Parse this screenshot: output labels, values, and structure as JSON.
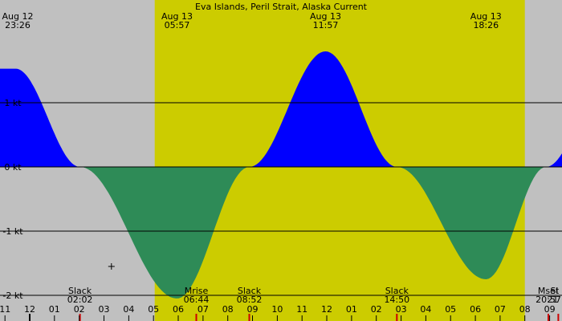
{
  "chart_data": {
    "type": "area",
    "title": "Eva Islands, Peril Strait, Alaska Current",
    "header_events": [
      {
        "date": "Aug 12",
        "time": "23:26"
      },
      {
        "date": "Aug 13",
        "time": "05:57"
      },
      {
        "date": "Aug 13",
        "time": "11:57"
      },
      {
        "date": "Aug 13",
        "time": "18:26"
      }
    ],
    "y_unit": "kt",
    "ylim": [
      -2.4,
      2.6
    ],
    "y_gridlines": [
      {
        "value": 1,
        "label": "1 kt"
      },
      {
        "value": 0,
        "label": "0 kt"
      },
      {
        "value": -1,
        "label": "-1 kt"
      },
      {
        "value": -2,
        "label": "-2 kt"
      }
    ],
    "x_unit": "hours",
    "x_range_hours": [
      22.8,
      45.5
    ],
    "hour_ticks": [
      "11",
      "12",
      "01",
      "02",
      "03",
      "04",
      "05",
      "06",
      "07",
      "08",
      "09",
      "10",
      "11",
      "12",
      "01",
      "02",
      "03",
      "04",
      "05",
      "06",
      "07",
      "08",
      "09"
    ],
    "first_tick_hour": 23,
    "daylight": {
      "sunrise_hour": 29.05,
      "sunset_hour": 44.0
    },
    "current_extremes": [
      {
        "hour": 23.43,
        "value": 1.53
      },
      {
        "hour": 29.95,
        "value": -2.05
      },
      {
        "hour": 35.95,
        "value": 1.8
      },
      {
        "hour": 42.43,
        "value": -1.75
      },
      {
        "hour": 47.5,
        "value": 1.5
      }
    ],
    "slack_hours": [
      26.03,
      32.87,
      38.83,
      44.85
    ],
    "bottom_events": [
      {
        "label": "Slack",
        "time": "02:02",
        "hour": 26.03
      },
      {
        "label": "Mrise",
        "time": "06:44",
        "hour": 30.73
      },
      {
        "label": "Slack",
        "time": "08:52",
        "hour": 32.87
      },
      {
        "label": "Slack",
        "time": "14:50",
        "hour": 38.83
      },
      {
        "label": "Mset",
        "time": "20:57",
        "hour": 44.95
      },
      {
        "label": "Sl",
        "time": "21",
        "hour": 45.35
      }
    ],
    "marker_hour": 27.3,
    "marker_value": -1.55,
    "colors": {
      "night": "#c0c0c0",
      "day": "#cccc00",
      "flood": "#0000ff",
      "ebb": "#2e8b57",
      "grid": "#000000",
      "event_tick": "#cc0000"
    }
  }
}
